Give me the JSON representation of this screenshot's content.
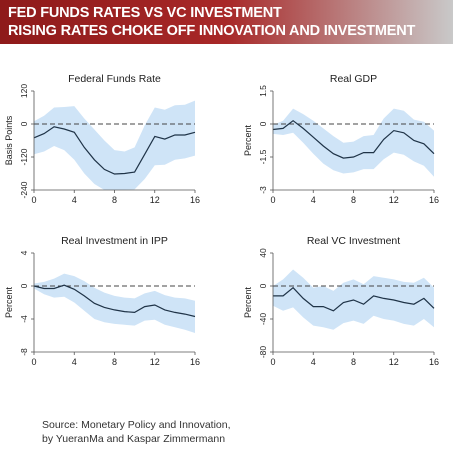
{
  "banner": {
    "line1": "FED FUNDS RATES VS VC INVESTMENT",
    "line2": "RISING RATES CHOKE OFF INNOVATION AND INVESTMENT",
    "color_left": "#8e1a1a",
    "color_right": "#c9c9c9"
  },
  "colors": {
    "line": "#1f3347",
    "band": "#cfe4f7",
    "zero_line": "#444444",
    "axis": "#555555"
  },
  "source": {
    "line1": "Source: Monetary Policy and Innovation,",
    "line2": "by YueranMa  and Kaspar Zimmermann"
  },
  "chart_data": [
    {
      "type": "line",
      "title": "Federal Funds Rate",
      "ylabel": "Basis Points",
      "xlim": [
        0,
        16
      ],
      "ylim": [
        -240,
        120
      ],
      "xticks": [
        0,
        4,
        8,
        12,
        16
      ],
      "yticks": [
        120,
        0,
        -120,
        -240
      ],
      "ytick_labels": [
        "120",
        "0",
        "-120",
        "-240"
      ],
      "x": [
        0,
        1,
        2,
        3,
        4,
        5,
        6,
        7,
        8,
        9,
        10,
        11,
        12,
        13,
        14,
        15,
        16
      ],
      "values": [
        -50,
        -35,
        -10,
        -18,
        -30,
        -85,
        -130,
        -165,
        -182,
        -180,
        -175,
        -110,
        -45,
        -55,
        -40,
        -40,
        -30
      ],
      "lower": [
        -110,
        -100,
        -80,
        -95,
        -130,
        -180,
        -218,
        -240,
        -240,
        -240,
        -238,
        -200,
        -150,
        -148,
        -130,
        -125,
        -115
      ],
      "upper": [
        10,
        30,
        60,
        62,
        65,
        20,
        -20,
        -60,
        -95,
        -100,
        -85,
        -5,
        60,
        52,
        68,
        70,
        85
      ]
    },
    {
      "type": "line",
      "title": "Real GDP",
      "ylabel": "Percent",
      "xlim": [
        0,
        16
      ],
      "ylim": [
        -3,
        1.5
      ],
      "xticks": [
        0,
        4,
        8,
        12,
        16
      ],
      "yticks": [
        1.5,
        0,
        -1.5,
        -3
      ],
      "ytick_labels": [
        "1.5",
        "0",
        "-1.5",
        "-3"
      ],
      "x": [
        0,
        1,
        2,
        3,
        4,
        5,
        6,
        7,
        8,
        9,
        10,
        11,
        12,
        13,
        14,
        15,
        16
      ],
      "values": [
        -0.25,
        -0.2,
        0.15,
        -0.2,
        -0.6,
        -1.0,
        -1.35,
        -1.55,
        -1.5,
        -1.3,
        -1.3,
        -0.7,
        -0.3,
        -0.4,
        -0.75,
        -0.9,
        -1.35
      ],
      "lower": [
        -0.45,
        -0.5,
        -0.4,
        -0.85,
        -1.35,
        -1.8,
        -2.1,
        -2.25,
        -2.2,
        -2.05,
        -2.05,
        -1.6,
        -1.3,
        -1.4,
        -1.7,
        -1.9,
        -2.4
      ],
      "upper": [
        -0.05,
        0.15,
        0.7,
        0.45,
        0.15,
        -0.2,
        -0.55,
        -0.85,
        -0.8,
        -0.55,
        -0.5,
        0.25,
        0.7,
        0.6,
        0.2,
        0.1,
        -0.3
      ]
    },
    {
      "type": "line",
      "title": "Real Investment in IPP",
      "ylabel": "Percent",
      "xlim": [
        0,
        16
      ],
      "ylim": [
        -8,
        4
      ],
      "xticks": [
        0,
        4,
        8,
        12,
        16
      ],
      "yticks": [
        4,
        0,
        -4,
        -8
      ],
      "ytick_labels": [
        "4",
        "0",
        "-4",
        "-8"
      ],
      "x": [
        0,
        1,
        2,
        3,
        4,
        5,
        6,
        7,
        8,
        9,
        10,
        11,
        12,
        13,
        14,
        15,
        16
      ],
      "values": [
        0,
        -0.3,
        -0.3,
        0.1,
        -0.4,
        -1.2,
        -2.1,
        -2.6,
        -2.9,
        -3.1,
        -3.2,
        -2.5,
        -2.3,
        -2.9,
        -3.2,
        -3.4,
        -3.7
      ],
      "lower": [
        -0.3,
        -1.0,
        -1.4,
        -1.3,
        -2.0,
        -3.0,
        -4.0,
        -4.4,
        -4.6,
        -4.7,
        -4.8,
        -4.2,
        -4.1,
        -4.7,
        -5.0,
        -5.3,
        -5.7
      ],
      "upper": [
        0.3,
        0.5,
        0.9,
        1.5,
        1.2,
        0.6,
        -0.2,
        -0.8,
        -1.2,
        -1.4,
        -1.5,
        -0.9,
        -0.6,
        -1.1,
        -1.4,
        -1.5,
        -1.8
      ]
    },
    {
      "type": "line",
      "title": "Real VC Investment",
      "ylabel": "Percent",
      "xlim": [
        0,
        16
      ],
      "ylim": [
        -80,
        40
      ],
      "xticks": [
        0,
        4,
        8,
        12,
        16
      ],
      "yticks": [
        40,
        0,
        -40,
        -80
      ],
      "ytick_labels": [
        "40",
        "0",
        "-40",
        "-80"
      ],
      "x": [
        0,
        1,
        2,
        3,
        4,
        5,
        6,
        7,
        8,
        9,
        10,
        11,
        12,
        13,
        14,
        15,
        16
      ],
      "values": [
        -12,
        -12,
        -2,
        -15,
        -25,
        -25,
        -30,
        -20,
        -17,
        -22,
        -12,
        -15,
        -17,
        -20,
        -22,
        -15,
        -27
      ],
      "lower": [
        -24,
        -30,
        -26,
        -38,
        -48,
        -50,
        -53,
        -45,
        -42,
        -46,
        -36,
        -40,
        -42,
        -46,
        -48,
        -40,
        -50
      ],
      "upper": [
        0,
        8,
        20,
        10,
        -2,
        0,
        -6,
        4,
        8,
        2,
        12,
        10,
        8,
        5,
        4,
        10,
        -2
      ]
    }
  ]
}
